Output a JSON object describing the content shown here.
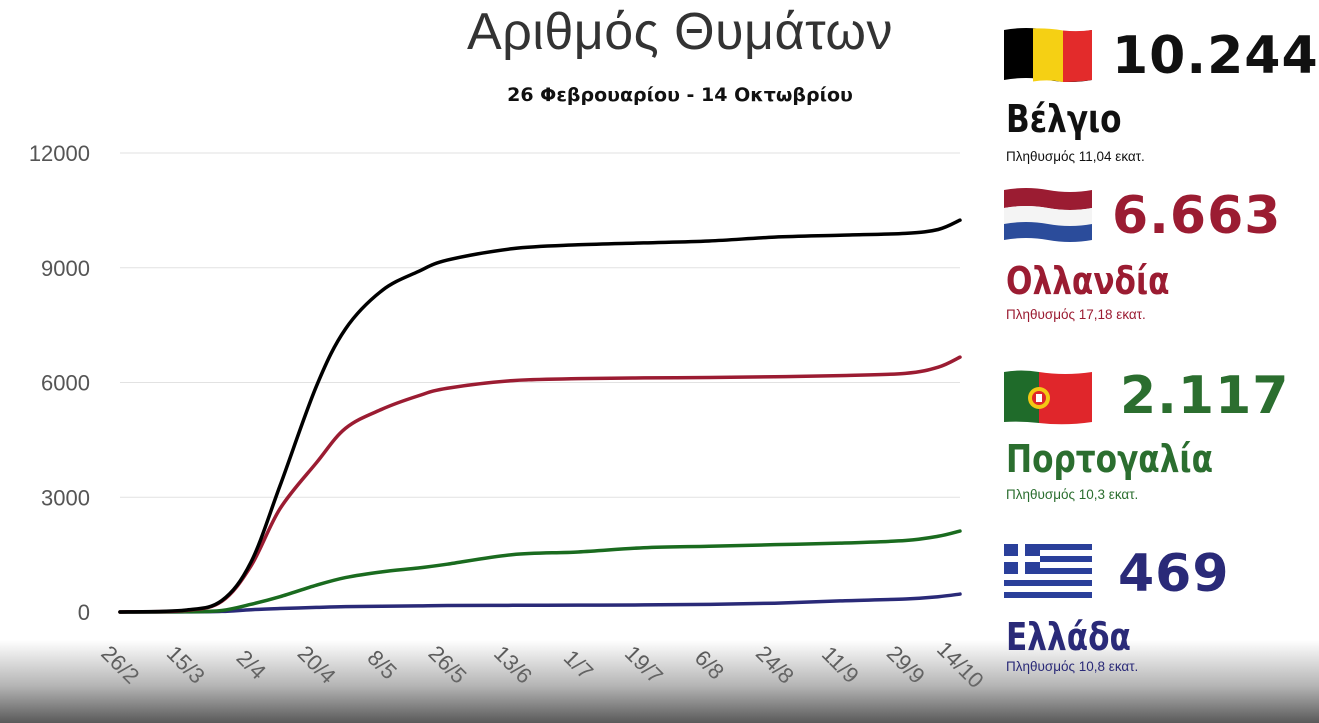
{
  "chart_data": {
    "type": "line",
    "title": "Αριθμός Θυμάτων",
    "subtitle": "26 Φεβρουαρίου - 14 Οκτωβρίου",
    "x_tick_labels": [
      "26/2",
      "15/3",
      "2/4",
      "20/4",
      "8/5",
      "26/5",
      "13/6",
      "1/7",
      "19/7",
      "6/8",
      "24/8",
      "11/9",
      "29/9",
      "14/10"
    ],
    "x": [
      "26/2",
      "15/3",
      "25/3",
      "2/4",
      "10/4",
      "20/4",
      "28/4",
      "8/5",
      "18/5",
      "26/5",
      "13/6",
      "1/7",
      "19/7",
      "6/8",
      "24/8",
      "11/9",
      "29/9",
      "8/10",
      "14/10"
    ],
    "y_ticks": [
      0,
      3000,
      6000,
      9000,
      12000
    ],
    "ylim": [
      0,
      12000
    ],
    "grid": true,
    "series": [
      {
        "name": "Βέλγιο",
        "color": "#000000",
        "values": [
          0,
          50,
          300,
          1300,
          3300,
          5900,
          7400,
          8400,
          8900,
          9200,
          9500,
          9600,
          9650,
          9700,
          9800,
          9850,
          9900,
          10000,
          10244
        ]
      },
      {
        "name": "Ολλανδία",
        "color": "#9b1c32",
        "values": [
          0,
          40,
          280,
          1200,
          2700,
          3900,
          4800,
          5300,
          5650,
          5850,
          6050,
          6100,
          6120,
          6130,
          6150,
          6180,
          6240,
          6400,
          6663
        ]
      },
      {
        "name": "Πορτογαλία",
        "color": "#1a6b1f",
        "values": [
          0,
          5,
          40,
          200,
          400,
          700,
          900,
          1050,
          1150,
          1250,
          1500,
          1570,
          1680,
          1720,
          1760,
          1800,
          1870,
          1980,
          2117
        ]
      },
      {
        "name": "Ελλάδα",
        "color": "#2a2a78",
        "values": [
          0,
          3,
          15,
          60,
          90,
          120,
          140,
          150,
          160,
          170,
          175,
          180,
          185,
          200,
          230,
          290,
          340,
          400,
          469
        ]
      }
    ]
  },
  "panels": [
    {
      "value": "10.244",
      "country": "Βέλγιο",
      "population": "Πληθυσμός 11,04 εκατ.",
      "color": "#111111",
      "flag": "belgium-flag-icon"
    },
    {
      "value": "6.663",
      "country": "Ολλανδία",
      "population": "Πληθυσμός 17,18 εκατ.",
      "color": "#9b1c32",
      "flag": "netherlands-flag-icon"
    },
    {
      "value": "2.117",
      "country": "Πορτογαλία",
      "population": "Πληθυσμός 10,3 εκατ.",
      "color": "#2b6e2f",
      "flag": "portugal-flag-icon"
    },
    {
      "value": "469",
      "country": "Ελλάδα",
      "population": "Πληθυσμός 10,8 εκατ.",
      "color": "#2a2a78",
      "flag": "greece-flag-icon"
    }
  ]
}
